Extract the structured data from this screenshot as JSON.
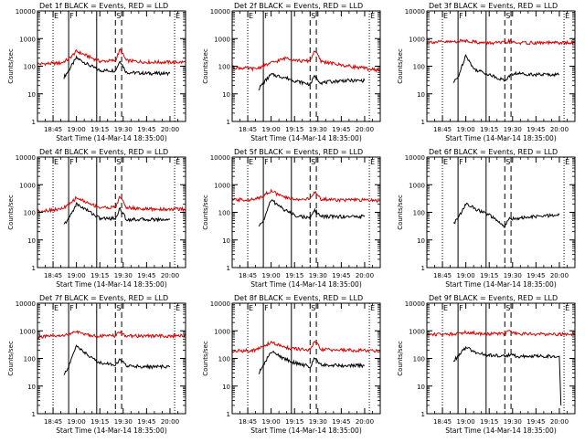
{
  "figure": {
    "ylabel": "Counts/sec",
    "xlabel": "Start Time (14-Mar-14 18:35:00)",
    "ytick_labels": [
      "1",
      "10",
      "100",
      "1000",
      "10000"
    ],
    "xtick_labels": [
      "18:45",
      "19:00",
      "19:15",
      "19:30",
      "19:45",
      "20:00"
    ],
    "region_labels": [
      "E",
      "F",
      "S",
      "E"
    ],
    "colors": {
      "events": "#000000",
      "lld": "#dd0000",
      "axis": "#000000"
    }
  },
  "chart_data": [
    {
      "type": "line",
      "title": "Det 1f BLACK = Events, RED = LLD",
      "x_range": [
        "18:35",
        "20:10"
      ],
      "ylim": [
        1,
        10000
      ],
      "yscale": "log",
      "markers": {
        "dotted": [
          "18:45",
          "20:03"
        ],
        "solid": [
          "18:55",
          "19:13"
        ],
        "dashed": [
          "19:25",
          "19:29"
        ]
      },
      "series": [
        {
          "name": "Events",
          "x": [
            "18:52",
            "18:55",
            "19:00",
            "19:08",
            "19:15",
            "19:25",
            "19:28",
            "19:32",
            "19:45",
            "20:00"
          ],
          "y": [
            40,
            70,
            200,
            110,
            70,
            70,
            160,
            60,
            55,
            55
          ]
        },
        {
          "name": "LLD",
          "x": [
            "18:35",
            "18:50",
            "18:55",
            "19:00",
            "19:08",
            "19:15",
            "19:25",
            "19:28",
            "19:32",
            "19:45",
            "20:10"
          ],
          "y": [
            120,
            130,
            180,
            350,
            220,
            150,
            160,
            400,
            160,
            140,
            140
          ]
        }
      ]
    },
    {
      "type": "line",
      "title": "Det 2f BLACK = Events, RED = LLD",
      "x_range": [
        "18:35",
        "20:10"
      ],
      "ylim": [
        1,
        10000
      ],
      "yscale": "log",
      "markers": {
        "dotted": [
          "18:45",
          "20:03"
        ],
        "solid": [
          "18:55",
          "19:13"
        ],
        "dashed": [
          "19:25",
          "19:29"
        ]
      },
      "series": [
        {
          "name": "Events",
          "x": [
            "18:52",
            "18:55",
            "19:00",
            "19:08",
            "19:15",
            "19:25",
            "19:28",
            "19:32",
            "19:45",
            "20:00"
          ],
          "y": [
            15,
            25,
            50,
            40,
            30,
            22,
            45,
            25,
            30,
            30
          ]
        },
        {
          "name": "LLD",
          "x": [
            "18:35",
            "18:50",
            "19:00",
            "19:10",
            "19:20",
            "19:25",
            "19:28",
            "19:32",
            "19:45",
            "20:10"
          ],
          "y": [
            90,
            80,
            130,
            200,
            150,
            160,
            380,
            150,
            110,
            70
          ]
        }
      ]
    },
    {
      "type": "line",
      "title": "Det 3f BLACK = Events, RED = LLD",
      "x_range": [
        "18:35",
        "20:10"
      ],
      "ylim": [
        1,
        10000
      ],
      "yscale": "log",
      "markers": {
        "dotted": [
          "18:45",
          "20:03"
        ],
        "solid": [
          "18:55",
          "19:13"
        ],
        "dashed": [
          "19:25",
          "19:29"
        ]
      },
      "series": [
        {
          "name": "Events",
          "x": [
            "18:52",
            "18:55",
            "19:00",
            "19:05",
            "19:15",
            "19:25",
            "19:28",
            "19:32",
            "19:45",
            "20:00"
          ],
          "y": [
            25,
            40,
            260,
            80,
            50,
            30,
            45,
            55,
            50,
            50
          ]
        },
        {
          "name": "LLD",
          "x": [
            "18:35",
            "18:50",
            "19:00",
            "19:10",
            "19:25",
            "19:28",
            "19:32",
            "19:45",
            "20:10"
          ],
          "y": [
            750,
            750,
            850,
            700,
            700,
            800,
            700,
            700,
            700
          ]
        }
      ]
    },
    {
      "type": "line",
      "title": "Det 4f BLACK = Events, RED = LLD",
      "x_range": [
        "18:35",
        "20:10"
      ],
      "ylim": [
        1,
        10000
      ],
      "yscale": "log",
      "markers": {
        "dotted": [
          "18:45",
          "20:03"
        ],
        "solid": [
          "18:55",
          "19:13"
        ],
        "dashed": [
          "19:25",
          "19:29"
        ]
      },
      "series": [
        {
          "name": "Events",
          "x": [
            "18:52",
            "18:55",
            "19:00",
            "19:08",
            "19:15",
            "19:25",
            "19:28",
            "19:32",
            "19:45",
            "20:00"
          ],
          "y": [
            35,
            60,
            200,
            110,
            60,
            60,
            140,
            55,
            55,
            55
          ]
        },
        {
          "name": "LLD",
          "x": [
            "18:35",
            "18:50",
            "18:55",
            "19:00",
            "19:08",
            "19:15",
            "19:25",
            "19:28",
            "19:32",
            "19:45",
            "20:10"
          ],
          "y": [
            110,
            130,
            180,
            340,
            210,
            150,
            150,
            380,
            150,
            130,
            130
          ]
        }
      ]
    },
    {
      "type": "line",
      "title": "Det 5f BLACK = Events, RED = LLD",
      "x_range": [
        "18:35",
        "20:10"
      ],
      "ylim": [
        1,
        10000
      ],
      "yscale": "log",
      "markers": {
        "dotted": [
          "18:45",
          "20:03"
        ],
        "solid": [
          "18:55",
          "19:13"
        ],
        "dashed": [
          "19:25",
          "19:29"
        ]
      },
      "series": [
        {
          "name": "Events",
          "x": [
            "18:52",
            "18:55",
            "19:00",
            "19:08",
            "19:15",
            "19:25",
            "19:28",
            "19:32",
            "19:45",
            "20:00"
          ],
          "y": [
            30,
            50,
            280,
            130,
            80,
            60,
            120,
            70,
            70,
            70
          ]
        },
        {
          "name": "LLD",
          "x": [
            "18:35",
            "18:50",
            "19:00",
            "19:08",
            "19:15",
            "19:25",
            "19:28",
            "19:32",
            "19:45",
            "20:10"
          ],
          "y": [
            280,
            290,
            600,
            350,
            300,
            300,
            550,
            300,
            280,
            270
          ]
        }
      ]
    },
    {
      "type": "line",
      "title": "Det 6f BLACK = Events, RED = LLD",
      "x_range": [
        "18:35",
        "20:10"
      ],
      "ylim": [
        1,
        10000
      ],
      "yscale": "log",
      "markers": {
        "dotted": [
          "18:45",
          "20:03"
        ],
        "solid": [
          "18:55",
          "19:13"
        ],
        "dashed": [
          "19:25",
          "19:29"
        ]
      },
      "series": [
        {
          "name": "Events",
          "x": [
            "18:52",
            "18:55",
            "19:00",
            "19:08",
            "19:15",
            "19:25",
            "19:28",
            "19:32",
            "19:45",
            "20:00"
          ],
          "y": [
            40,
            60,
            200,
            120,
            80,
            30,
            60,
            60,
            70,
            80
          ]
        }
      ]
    },
    {
      "type": "line",
      "title": "Det 7f BLACK = Events, RED = LLD",
      "x_range": [
        "18:35",
        "20:10"
      ],
      "ylim": [
        1,
        10000
      ],
      "yscale": "log",
      "markers": {
        "dotted": [
          "18:45",
          "20:03"
        ],
        "solid": [
          "18:55",
          "19:13"
        ],
        "dashed": [
          "19:25",
          "19:29"
        ]
      },
      "series": [
        {
          "name": "Events",
          "x": [
            "18:52",
            "18:55",
            "19:00",
            "19:08",
            "19:15",
            "19:25",
            "19:28",
            "19:32",
            "19:45",
            "20:00"
          ],
          "y": [
            25,
            50,
            300,
            120,
            70,
            60,
            90,
            55,
            50,
            50
          ]
        },
        {
          "name": "LLD",
          "x": [
            "18:35",
            "18:50",
            "19:00",
            "19:08",
            "19:15",
            "19:25",
            "19:28",
            "19:32",
            "19:45",
            "20:10"
          ],
          "y": [
            600,
            650,
            900,
            700,
            650,
            650,
            900,
            650,
            650,
            650
          ]
        }
      ]
    },
    {
      "type": "line",
      "title": "Det 8f BLACK = Events, RED = LLD",
      "x_range": [
        "18:35",
        "20:10"
      ],
      "ylim": [
        1,
        10000
      ],
      "yscale": "log",
      "markers": {
        "dotted": [
          "18:45",
          "20:03"
        ],
        "solid": [
          "18:55",
          "19:13"
        ],
        "dashed": [
          "19:25",
          "19:29"
        ]
      },
      "series": [
        {
          "name": "Events",
          "x": [
            "18:52",
            "18:55",
            "19:00",
            "19:08",
            "19:15",
            "19:25",
            "19:28",
            "19:32",
            "19:45",
            "20:00"
          ],
          "y": [
            30,
            55,
            180,
            100,
            70,
            50,
            110,
            60,
            55,
            55
          ]
        },
        {
          "name": "LLD",
          "x": [
            "18:35",
            "18:50",
            "19:00",
            "19:08",
            "19:15",
            "19:25",
            "19:28",
            "19:32",
            "19:45",
            "20:10"
          ],
          "y": [
            180,
            200,
            380,
            260,
            220,
            200,
            420,
            210,
            200,
            190
          ]
        }
      ]
    },
    {
      "type": "line",
      "title": "Det 9f BLACK = Events, RED = LLD",
      "x_range": [
        "18:35",
        "20:10"
      ],
      "ylim": [
        1,
        10000
      ],
      "yscale": "log",
      "markers": {
        "dotted": [
          "18:45",
          "20:03"
        ],
        "solid": [
          "18:55",
          "19:13"
        ],
        "dashed": [
          "19:25",
          "19:29"
        ]
      },
      "series": [
        {
          "name": "Events",
          "x": [
            "18:52",
            "18:55",
            "19:00",
            "19:08",
            "19:15",
            "19:25",
            "19:28",
            "19:32",
            "19:45",
            "20:00",
            "20:01"
          ],
          "y": [
            80,
            120,
            250,
            150,
            130,
            120,
            140,
            120,
            120,
            120,
            2
          ]
        },
        {
          "name": "LLD",
          "x": [
            "18:35",
            "18:50",
            "19:00",
            "19:10",
            "19:25",
            "19:28",
            "19:32",
            "19:45",
            "20:10"
          ],
          "y": [
            750,
            760,
            900,
            780,
            780,
            1000,
            780,
            760,
            760
          ]
        }
      ]
    }
  ]
}
